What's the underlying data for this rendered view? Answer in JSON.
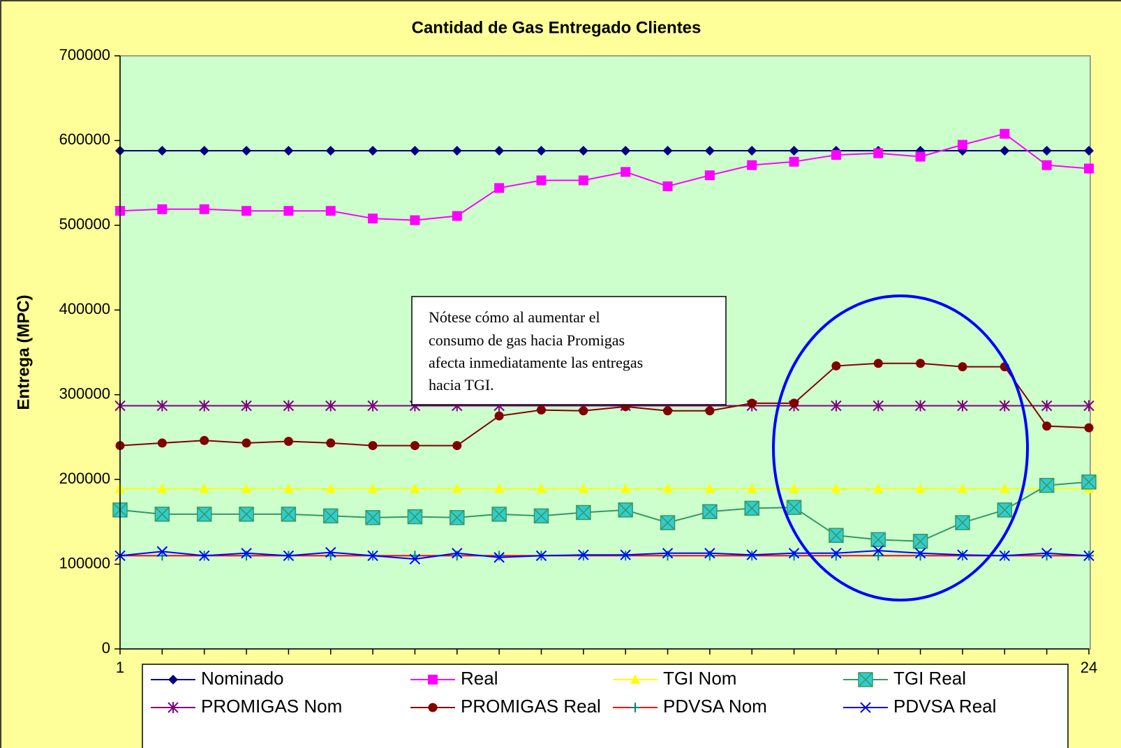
{
  "chart_data": {
    "type": "line",
    "title": "Cantidad de Gas Entregado Clientes",
    "y_label": "Entrega (MPC)",
    "categories": [
      1,
      null,
      null,
      null,
      null,
      null,
      null,
      null,
      null,
      null,
      null,
      null,
      null,
      null,
      null,
      null,
      null,
      null,
      null,
      null,
      null,
      null,
      null,
      24
    ],
    "ylim": [
      0,
      700000
    ],
    "yticks": [
      0,
      100000,
      200000,
      300000,
      400000,
      500000,
      600000,
      700000
    ],
    "grid": false,
    "legend": "bottom",
    "series": [
      {
        "name": "Nominado",
        "color": "#000080",
        "values": [
          588000,
          588000,
          588000,
          588000,
          588000,
          588000,
          588000,
          588000,
          588000,
          588000,
          588000,
          588000,
          588000,
          588000,
          588000,
          588000,
          588000,
          588000,
          588000,
          588000,
          588000,
          588000,
          588000,
          588000
        ]
      },
      {
        "name": "Real",
        "color": "#ff00ff",
        "values": [
          517000,
          519000,
          519000,
          517000,
          517000,
          517000,
          508000,
          506000,
          511000,
          544000,
          553000,
          553000,
          563000,
          546000,
          559000,
          571000,
          575000,
          583000,
          585000,
          581000,
          595000,
          608000,
          571000,
          567000
        ]
      },
      {
        "name": "TGI Nom",
        "color": "#ffff00",
        "values": [
          189000,
          189000,
          189000,
          189000,
          189000,
          189000,
          189000,
          189000,
          189000,
          189000,
          189000,
          189000,
          189000,
          189000,
          189000,
          189000,
          189000,
          189000,
          189000,
          189000,
          189000,
          189000,
          189000,
          189000
        ]
      },
      {
        "name": "TGI Real",
        "color": "#339966",
        "values": [
          164000,
          159000,
          159000,
          159000,
          159000,
          157000,
          155000,
          156000,
          155000,
          159000,
          157000,
          161000,
          164000,
          149000,
          162000,
          166000,
          167000,
          134000,
          129000,
          127000,
          149000,
          164000,
          193000,
          197000
        ]
      },
      {
        "name": "PROMIGAS Nom",
        "color": "#800080",
        "values": [
          287000,
          287000,
          287000,
          287000,
          287000,
          287000,
          287000,
          287000,
          287000,
          287000,
          287000,
          287000,
          287000,
          287000,
          287000,
          287000,
          287000,
          287000,
          287000,
          287000,
          287000,
          287000,
          287000,
          287000
        ]
      },
      {
        "name": "PROMIGAS Real",
        "color": "#800000",
        "values": [
          240000,
          243000,
          246000,
          243000,
          245000,
          243000,
          240000,
          240000,
          240000,
          275000,
          282000,
          281000,
          286000,
          281000,
          281000,
          290000,
          290000,
          334000,
          337000,
          337000,
          333000,
          333000,
          263000,
          261000
        ]
      },
      {
        "name": "PDVSA Nom",
        "color": "#ff0000",
        "values": [
          110000,
          110000,
          110000,
          110000,
          110000,
          110000,
          110000,
          110000,
          110000,
          110000,
          110000,
          110000,
          110000,
          110000,
          110000,
          110000,
          110000,
          110000,
          110000,
          110000,
          110000,
          110000,
          110000,
          110000
        ]
      },
      {
        "name": "PDVSA Real",
        "color": "#0000ff",
        "values": [
          110000,
          115000,
          110000,
          113000,
          110000,
          114000,
          110000,
          106000,
          113000,
          108000,
          110000,
          111000,
          111000,
          113000,
          113000,
          111000,
          113000,
          113000,
          116000,
          113000,
          111000,
          110000,
          113000,
          110000
        ]
      }
    ],
    "annotation": [
      "Nótese cómo al aumentar el",
      "consumo de gas hacia Promigas",
      "afecta inmediatamente las entregas",
      "hacia TGI."
    ]
  }
}
